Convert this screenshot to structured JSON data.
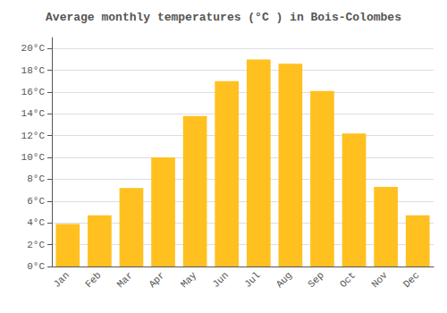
{
  "chart_data": {
    "type": "bar",
    "title": "Average monthly temperatures (°C ) in Bois-Colombes",
    "categories": [
      "Jan",
      "Feb",
      "Mar",
      "Apr",
      "May",
      "Jun",
      "Jul",
      "Aug",
      "Sep",
      "Oct",
      "Nov",
      "Dec"
    ],
    "values": [
      3.9,
      4.7,
      7.2,
      10.0,
      13.8,
      17.0,
      19.0,
      18.6,
      16.1,
      12.2,
      7.3,
      4.7
    ],
    "color": "#FFC020",
    "ylim": [
      0,
      21
    ],
    "yticks": [
      {
        "value": 0,
        "label": "0°C"
      },
      {
        "value": 2,
        "label": "2°C"
      },
      {
        "value": 4,
        "label": "4°C"
      },
      {
        "value": 6,
        "label": "6°C"
      },
      {
        "value": 8,
        "label": "8°C"
      },
      {
        "value": 10,
        "label": "10°C"
      },
      {
        "value": 12,
        "label": "12°C"
      },
      {
        "value": 14,
        "label": "14°C"
      },
      {
        "value": 16,
        "label": "16°C"
      },
      {
        "value": 18,
        "label": "18°C"
      },
      {
        "value": 20,
        "label": "20°C"
      }
    ],
    "grid": true
  }
}
